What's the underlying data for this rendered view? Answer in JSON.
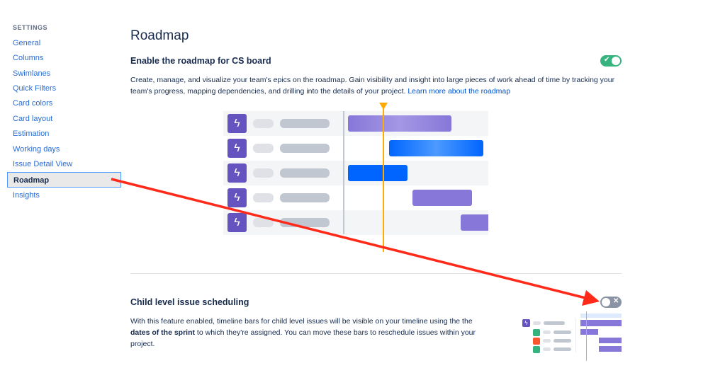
{
  "sidebar": {
    "heading": "SETTINGS",
    "items": [
      {
        "label": "General"
      },
      {
        "label": "Columns"
      },
      {
        "label": "Swimlanes"
      },
      {
        "label": "Quick Filters"
      },
      {
        "label": "Card colors"
      },
      {
        "label": "Card layout"
      },
      {
        "label": "Estimation"
      },
      {
        "label": "Working days"
      },
      {
        "label": "Issue Detail View"
      },
      {
        "label": "Roadmap",
        "active": true
      },
      {
        "label": "Insights"
      }
    ]
  },
  "main": {
    "title": "Roadmap",
    "roadmap": {
      "heading": "Enable the roadmap for CS board",
      "enabled": true,
      "description": "Create, manage, and visualize your team's epics on the roadmap. Gain visibility and insight into large pieces of work ahead of time by tracking your team's progress, mapping dependencies, and drilling into the details of your project. ",
      "link": "Learn more about the roadmap",
      "icon": "lightning-icon"
    },
    "child": {
      "heading": "Child level issue scheduling",
      "enabled": false,
      "desc_before": "With this feature enabled, timeline bars for child level issues will be visible on your timeline using the the ",
      "desc_bold": "dates of the sprint",
      "desc_after": " to which they're assigned. You can move these bars to reschedule issues within your project."
    }
  },
  "colors": {
    "accent": "#0052cc",
    "toggle_on": "#36b37e",
    "toggle_off": "#8993a4",
    "epic": "#6554c0",
    "annotation": "#ff2a1a"
  }
}
